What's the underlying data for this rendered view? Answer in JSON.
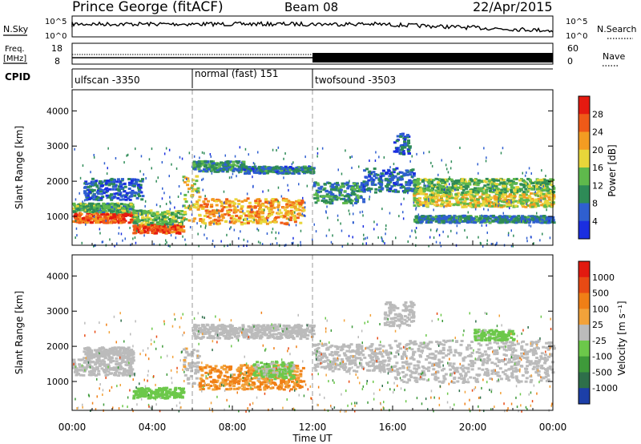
{
  "header": {
    "station": "Prince George (fitACF)",
    "beam": "Beam 08",
    "date": "22/Apr/2015"
  },
  "noise_panel": {
    "left_label": "N.Sky",
    "right_label": "N.Search",
    "ticks": [
      "10^5",
      "10^0"
    ]
  },
  "freq_panel": {
    "left_label_line1": "Freq.",
    "left_label_line2": "[MHz]",
    "left_ticks": [
      "18",
      "8"
    ],
    "right_label": "Nave",
    "right_ticks": [
      "60",
      "0"
    ]
  },
  "cpid_panel": {
    "label": "CPID",
    "segments": [
      {
        "name": "ulfscan -3350",
        "start_hour": 0,
        "end_hour": 6
      },
      {
        "name": "normal (fast) 151",
        "start_hour": 6,
        "end_hour": 12
      },
      {
        "name": "twofsound -3503",
        "start_hour": 12,
        "end_hour": 24
      }
    ]
  },
  "time_axis": {
    "label": "Time UT",
    "ticks": [
      "00:00",
      "04:00",
      "08:00",
      "12:00",
      "16:00",
      "20:00",
      "00:00"
    ]
  },
  "chart_data": [
    {
      "type": "heatmap",
      "quantity": "Power",
      "ylabel": "Slant Range [km]",
      "yticks": [
        1000,
        2000,
        3000,
        4000
      ],
      "ylim": [
        180,
        4600
      ],
      "xlim_hours": [
        0,
        24
      ],
      "colorbar_label": "Power [dB]",
      "colorbar_ticks": [
        "4",
        "8",
        "12",
        "16",
        "20",
        "24",
        "28"
      ],
      "colorbar_colors": [
        "#1a2ee0",
        "#2f5fd0",
        "#2e8b57",
        "#5fb94c",
        "#e8d63a",
        "#f39c22",
        "#ef5a18",
        "#e51a10"
      ],
      "colorbar_range": [
        0,
        32
      ],
      "bands": [
        {
          "t0": 0.0,
          "t1": 3.0,
          "r0": 850,
          "r1": 1150,
          "level": 26
        },
        {
          "t0": 0.0,
          "t1": 3.0,
          "r0": 1150,
          "r1": 1400,
          "level": 12
        },
        {
          "t0": 0.5,
          "t1": 3.5,
          "r0": 1500,
          "r1": 2100,
          "level": 6
        },
        {
          "t0": 3.0,
          "t1": 5.5,
          "r0": 550,
          "r1": 800,
          "level": 27
        },
        {
          "t0": 3.0,
          "t1": 5.5,
          "r0": 800,
          "r1": 1200,
          "level": 14
        },
        {
          "t0": 5.5,
          "t1": 6.3,
          "r0": 900,
          "r1": 2200,
          "level": 18
        },
        {
          "t0": 6.0,
          "t1": 8.5,
          "r0": 2300,
          "r1": 2600,
          "level": 10
        },
        {
          "t0": 8.5,
          "t1": 12.0,
          "r0": 2250,
          "r1": 2450,
          "level": 8
        },
        {
          "t0": 6.3,
          "t1": 11.5,
          "r0": 800,
          "r1": 1550,
          "level": 22
        },
        {
          "t0": 12.0,
          "t1": 14.5,
          "r0": 1400,
          "r1": 2000,
          "level": 10
        },
        {
          "t0": 14.5,
          "t1": 17.0,
          "r0": 1700,
          "r1": 2400,
          "level": 7
        },
        {
          "t0": 16.0,
          "t1": 16.8,
          "r0": 2800,
          "r1": 3400,
          "level": 6
        },
        {
          "t0": 17.0,
          "t1": 24.0,
          "r0": 1300,
          "r1": 1700,
          "level": 18
        },
        {
          "t0": 17.0,
          "t1": 24.0,
          "r0": 1700,
          "r1": 2100,
          "level": 13
        },
        {
          "t0": 17.0,
          "t1": 24.0,
          "r0": 850,
          "r1": 1050,
          "level": 9
        }
      ]
    },
    {
      "type": "heatmap",
      "quantity": "Velocity",
      "ylabel": "Slant Range [km]",
      "yticks": [
        1000,
        2000,
        3000,
        4000
      ],
      "ylim": [
        180,
        4600
      ],
      "xlim_hours": [
        0,
        24
      ],
      "colorbar_label": "Velocity [m s⁻¹]",
      "colorbar_ticks": [
        "1000",
        "500",
        "100",
        "25",
        "-25",
        "-100",
        "-500",
        "-1000"
      ],
      "colorbar_colors": [
        "#1c3fa8",
        "#2e6f4a",
        "#3e9a3a",
        "#6cc84a",
        "#bbbbbb",
        "#f2a23a",
        "#f07f16",
        "#e84a14",
        "#e21a10"
      ],
      "colorbar_range": [
        -1200,
        1200
      ],
      "bands": [
        {
          "t0": 0.0,
          "t1": 3.0,
          "r0": 1200,
          "r1": 1700,
          "level": 0
        },
        {
          "t0": 0.5,
          "t1": 3.0,
          "r0": 1700,
          "r1": 2000,
          "level": 0
        },
        {
          "t0": 3.0,
          "t1": 5.5,
          "r0": 550,
          "r1": 850,
          "level": -300
        },
        {
          "t0": 5.5,
          "t1": 6.3,
          "r0": 900,
          "r1": 2000,
          "level": 60
        },
        {
          "t0": 6.0,
          "t1": 12.0,
          "r0": 2250,
          "r1": 2650,
          "level": 0
        },
        {
          "t0": 6.3,
          "t1": 11.5,
          "r0": 800,
          "r1": 1500,
          "level": 400
        },
        {
          "t0": 9.0,
          "t1": 11.0,
          "r0": 1100,
          "r1": 1600,
          "level": -150
        },
        {
          "t0": 12.0,
          "t1": 16.0,
          "r0": 1300,
          "r1": 2100,
          "level": 0
        },
        {
          "t0": 16.0,
          "t1": 24.0,
          "r0": 1000,
          "r1": 2200,
          "level": 0
        },
        {
          "t0": 20.0,
          "t1": 22.0,
          "r0": 2200,
          "r1": 2500,
          "level": -200
        },
        {
          "t0": 15.5,
          "t1": 17.0,
          "r0": 2600,
          "r1": 3300,
          "level": 0
        }
      ]
    }
  ]
}
